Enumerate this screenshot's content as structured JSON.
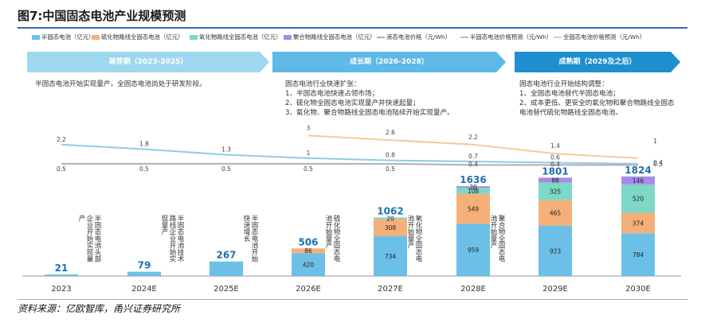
{
  "figure_title": "图7:中国固态电池产业规模预测",
  "source": "资料来源：亿欧智库，甬兴证券研究所",
  "legend": [
    {
      "label": "半固态电池（亿元）",
      "kind": "bar",
      "color": "#6cc0e8"
    },
    {
      "label": "硫化物路线全固态电池（亿元）",
      "kind": "bar",
      "color": "#f5b07a"
    },
    {
      "label": "氧化物路线全固态电池（亿元）",
      "kind": "bar",
      "color": "#7dd8c8"
    },
    {
      "label": "聚合物路线全固态电池（亿元）",
      "kind": "bar",
      "color": "#a78be8"
    },
    {
      "label": "液态电池价格（元/Wh）",
      "kind": "line",
      "color": "#b0b0b0"
    },
    {
      "label": "半固态电池价格预测（元/Wh）",
      "kind": "line",
      "color": "#8fcbea"
    },
    {
      "label": "全固态电池价格预测（元/Wh）",
      "kind": "line",
      "color": "#f5c99a"
    }
  ],
  "phases": [
    {
      "label": "萌芽期（2023-2025）",
      "color": "#9ed8f0",
      "desc": "半固态电池开始实现量产，全固态电池尚处于研发阶段。"
    },
    {
      "label": "成长期（2026-2028）",
      "color": "#5fb8e6",
      "desc": "固态电池行业快速扩张：\n1、半固态电池快速占领市场；\n2、硫化物全固态电池实现量产并快速起量；\n3、氧化物、聚合物路线全固态电池陆续开始实现量产。"
    },
    {
      "label": "成熟期（2029及之后）",
      "color": "#1f8fcf",
      "desc": "固态电池行业开始结构调整：\n1、全固态电池替代半固态电池；\n2、成本更低、更安全的氧化物和聚合物路线全固态电池替代硫化物路线全固态电池。"
    }
  ],
  "annotations": [
    {
      "after": "2023",
      "text": "半固态电池头部企业开始实现量产"
    },
    {
      "after": "2024E",
      "text": "半固态电池技术路线企业开始实现量产"
    },
    {
      "after": "2025E",
      "text": "半固态电池开始快速增长"
    },
    {
      "after": "2026E",
      "text": "硫化物全固态电池开始量产"
    },
    {
      "after": "2027E",
      "text": "氧化物全固态电池开始量产"
    },
    {
      "after": "2028E",
      "text": "聚合物全固态电池开始量产"
    }
  ],
  "chart_data": {
    "type": "bar",
    "stacked": true,
    "categories": [
      "2023",
      "2024E",
      "2025E",
      "2026E",
      "2027E",
      "2028E",
      "2029E",
      "2030E"
    ],
    "series": [
      {
        "name": "半固态电池（亿元）",
        "values": [
          21,
          79,
          267,
          420,
          734,
          959,
          923,
          784
        ]
      },
      {
        "name": "硫化物路线全固态电池（亿元）",
        "values": [
          0,
          0,
          0,
          86,
          308,
          549,
          465,
          374
        ]
      },
      {
        "name": "氧化物路线全固态电池（亿元）",
        "values": [
          0,
          0,
          0,
          0,
          20,
          108,
          325,
          520
        ]
      },
      {
        "name": "聚合物路线全固态电池（亿元）",
        "values": [
          0,
          0,
          0,
          0,
          0,
          20,
          88,
          146
        ]
      }
    ],
    "totals": [
      21,
      79,
      267,
      506,
      1062,
      1636,
      1801,
      1824
    ],
    "lines": [
      {
        "name": "液态电池价格（元/Wh）",
        "values": [
          0.5,
          0.5,
          0.5,
          0.5,
          0.5,
          0.4,
          0.4,
          0.4
        ]
      },
      {
        "name": "半固态电池价格预测（元/Wh）",
        "values": [
          2.2,
          1.8,
          1.3,
          1,
          0.8,
          0.7,
          0.6,
          0.5
        ]
      },
      {
        "name": "全固态电池价格预测（元/Wh）",
        "values": [
          null,
          null,
          null,
          3,
          2.6,
          2.2,
          1.4,
          1
        ]
      }
    ],
    "bar_ylim": [
      0,
      1850
    ],
    "line_ylim": [
      0,
      3.2
    ]
  }
}
